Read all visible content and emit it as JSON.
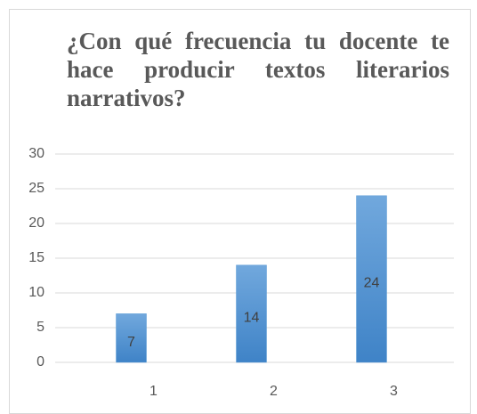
{
  "chart_data": {
    "type": "bar",
    "title": "¿Con qué frecuencia tu docente te hace producir textos literarios narrativos?",
    "categories": [
      "1",
      "2",
      "3"
    ],
    "values": [
      7,
      14,
      24
    ],
    "color": "#5b9bd5",
    "ylim": [
      0,
      30
    ],
    "yticks": [
      0,
      5,
      10,
      15,
      20,
      25,
      30
    ],
    "grid": true
  }
}
